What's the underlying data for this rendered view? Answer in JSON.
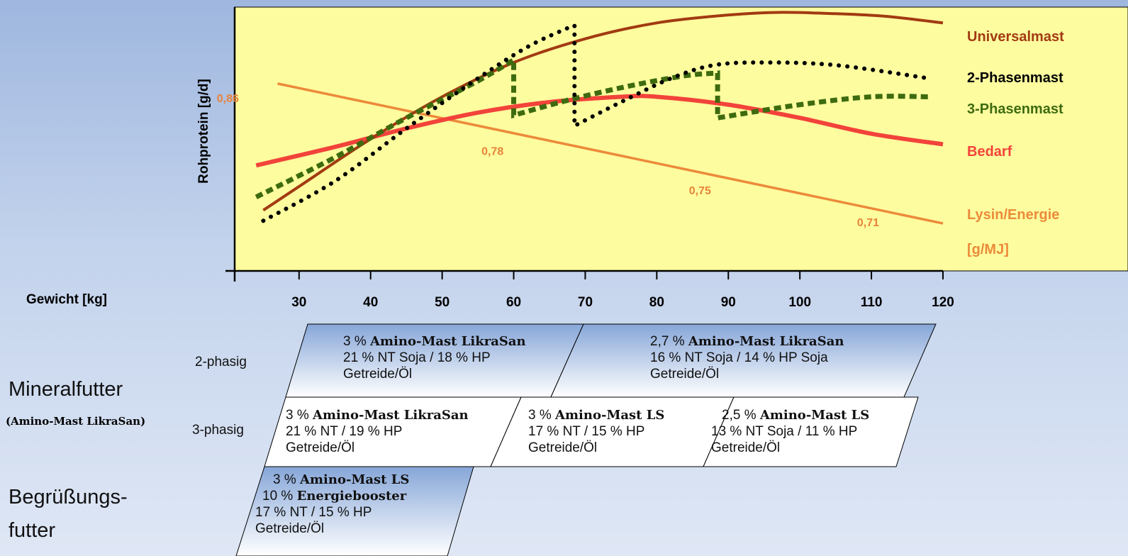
{
  "chart_data": {
    "type": "line",
    "ylabel": "Rohprotein [g/d]",
    "xlabel": "Gewicht [kg]",
    "x_ticks": [
      "30",
      "40",
      "50",
      "60",
      "70",
      "80",
      "90",
      "100",
      "110",
      "120"
    ],
    "xlim": [
      21,
      120
    ],
    "series": [
      {
        "name": "Universalmast",
        "color": "#a23a12",
        "style": "solid",
        "x": [
          25,
          30,
          40,
          50,
          60,
          70,
          80,
          90,
          97,
          105,
          112,
          120
        ],
        "y": [
          0.23,
          0.32,
          0.5,
          0.66,
          0.79,
          0.88,
          0.94,
          0.97,
          0.98,
          0.975,
          0.965,
          0.94
        ]
      },
      {
        "name": "2-Phasenmast",
        "color": "#000000",
        "style": "dotted",
        "x": [
          25,
          35,
          45,
          55,
          62,
          67.5,
          68.5,
          68.5,
          75,
          82,
          88,
          95,
          105,
          118
        ],
        "y": [
          0.19,
          0.34,
          0.54,
          0.73,
          0.85,
          0.92,
          0.93,
          0.55,
          0.64,
          0.73,
          0.78,
          0.79,
          0.78,
          0.73
        ]
      },
      {
        "name": "3-Phasenmast",
        "color": "#3e6b0f",
        "style": "dashed",
        "x": [
          24,
          35,
          45,
          55,
          60,
          60,
          68,
          76,
          84,
          88.5,
          88.5,
          100,
          110,
          118
        ],
        "y": [
          0.28,
          0.43,
          0.58,
          0.72,
          0.8,
          0.59,
          0.65,
          0.7,
          0.74,
          0.75,
          0.58,
          0.63,
          0.66,
          0.66
        ]
      },
      {
        "name": "Bedarf",
        "color": "#f2433a",
        "style": "solid",
        "x": [
          24,
          35,
          45,
          55,
          65,
          75,
          80,
          90,
          100,
          110,
          120
        ],
        "y": [
          0.4,
          0.47,
          0.54,
          0.6,
          0.64,
          0.66,
          0.66,
          0.63,
          0.58,
          0.52,
          0.48
        ]
      },
      {
        "name": "Lysin/Energie [g/MJ]",
        "color": "#ec8a3a",
        "style": "solid",
        "x": [
          27,
          120
        ],
        "y": [
          0.71,
          0.18
        ]
      }
    ],
    "ratio_labels": [
      {
        "text": "0,86",
        "x": 18.5,
        "y": 0.64
      },
      {
        "text": "0,78",
        "x": 55.5,
        "y": 0.44
      },
      {
        "text": "0,75",
        "x": 84.5,
        "y": 0.29
      },
      {
        "text": "0,71",
        "x": 108,
        "y": 0.17
      }
    ],
    "legend": [
      "Universalmast",
      "2-Phasenmast",
      "3-Phasenmast",
      "Bedarf",
      "Lysin/Energie",
      "[g/MJ]"
    ]
  },
  "feed": {
    "mineral_title": "Mineralfutter",
    "mineral_sub": "(Amino-Mast LikraSan)",
    "phase2": "2-phasig",
    "phase3": "3-phasig",
    "welcome_1": "Begrüßungs-",
    "welcome_2": "futter",
    "p2a": {
      "pct": "3 % ",
      "prod": "Amino-Mast LikraSan",
      "l2": "21 % NT Soja / 18 % HP",
      "l3": "Getreide/Öl"
    },
    "p2b": {
      "pct": "2,7 % ",
      "prod": "Amino-Mast LikraSan",
      "l2": "16 % NT Soja / 14 % HP Soja",
      "l3": "Getreide/Öl"
    },
    "p3a": {
      "pct": "3 % ",
      "prod": "Amino-Mast LikraSan",
      "l2": "21 % NT / 19 % HP",
      "l3": "Getreide/Öl"
    },
    "p3b": {
      "pct": "3 % ",
      "prod": "Amino-Mast LS",
      "l2": "17 % NT / 15 % HP",
      "l3": "Getreide/Öl"
    },
    "p3c": {
      "pct": "2,5 % ",
      "prod": "Amino-Mast LS",
      "l2": "13 % NT Soja / 11 % HP",
      "l3": "Getreide/Öl"
    },
    "welcome_box": {
      "pct1": "3 % ",
      "prod1": "Amino-Mast LS",
      "pct2": "10 % ",
      "prod2": "Energiebooster",
      "l3": "17 % NT / 15 % HP",
      "l4": "Getreide/Öl"
    }
  },
  "colors": {
    "plot_bg": "#fdfd9f",
    "box_top": "#86a6d8",
    "box_bottom": "#ffffff"
  }
}
